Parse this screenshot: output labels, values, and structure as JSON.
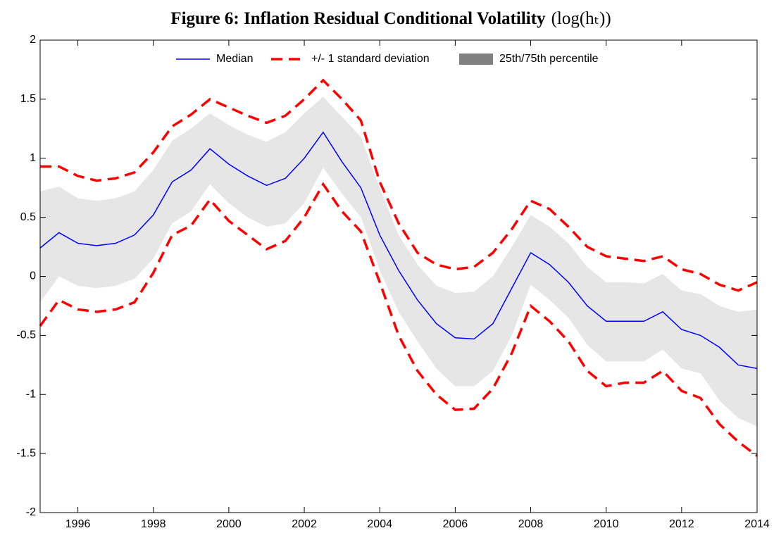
{
  "chart_data": {
    "type": "line",
    "title": "Figure 6: Inflation Residual Conditional Volatility",
    "title_formula": "(log(hₜ))",
    "x": [
      1995,
      1995.5,
      1996,
      1996.5,
      1997,
      1997.5,
      1998,
      1998.5,
      1999,
      1999.5,
      2000,
      2000.5,
      2001,
      2001.5,
      2002,
      2002.5,
      2003,
      2003.5,
      2004,
      2004.5,
      2005,
      2005.5,
      2006,
      2006.5,
      2007,
      2007.5,
      2008,
      2008.5,
      2009,
      2009.5,
      2010,
      2010.5,
      2011,
      2011.5,
      2012,
      2012.5,
      2013,
      2013.5,
      2014
    ],
    "series": [
      {
        "name": "Median",
        "color": "#0000ff",
        "style": "solid",
        "values": [
          0.24,
          0.37,
          0.28,
          0.26,
          0.28,
          0.35,
          0.52,
          0.8,
          0.9,
          1.08,
          0.95,
          0.85,
          0.77,
          0.83,
          1.0,
          1.22,
          0.97,
          0.75,
          0.35,
          0.05,
          -0.2,
          -0.4,
          -0.52,
          -0.53,
          -0.4,
          -0.1,
          0.2,
          0.1,
          -0.05,
          -0.25,
          -0.38,
          -0.38,
          -0.38,
          -0.3,
          -0.45,
          -0.5,
          -0.6,
          -0.75,
          -0.78
        ]
      },
      {
        "name": "+/- 1 standard deviation",
        "color": "#ff0000",
        "style": "dashed",
        "upper": [
          0.93,
          0.93,
          0.85,
          0.81,
          0.83,
          0.88,
          1.05,
          1.27,
          1.37,
          1.5,
          1.43,
          1.36,
          1.3,
          1.36,
          1.5,
          1.66,
          1.5,
          1.32,
          0.8,
          0.45,
          0.2,
          0.1,
          0.06,
          0.08,
          0.2,
          0.4,
          0.64,
          0.57,
          0.42,
          0.25,
          0.17,
          0.15,
          0.13,
          0.17,
          0.06,
          0.02,
          -0.07,
          -0.12,
          -0.05
        ],
        "lower": [
          -0.42,
          -0.2,
          -0.28,
          -0.3,
          -0.28,
          -0.22,
          0.03,
          0.35,
          0.43,
          0.65,
          0.47,
          0.35,
          0.23,
          0.3,
          0.5,
          0.78,
          0.55,
          0.38,
          -0.05,
          -0.5,
          -0.8,
          -1.0,
          -1.13,
          -1.12,
          -0.95,
          -0.65,
          -0.25,
          -0.38,
          -0.55,
          -0.8,
          -0.93,
          -0.9,
          -0.9,
          -0.8,
          -0.97,
          -1.03,
          -1.25,
          -1.4,
          -1.52
        ]
      },
      {
        "name": "25th/75th percentile",
        "color": "#e6e6e6",
        "legend_color": "#808080",
        "style": "band",
        "upper": [
          0.72,
          0.76,
          0.66,
          0.64,
          0.66,
          0.72,
          0.9,
          1.15,
          1.25,
          1.38,
          1.28,
          1.2,
          1.14,
          1.22,
          1.38,
          1.52,
          1.35,
          1.18,
          0.75,
          0.35,
          0.1,
          -0.08,
          -0.14,
          -0.13,
          0.0,
          0.25,
          0.52,
          0.42,
          0.28,
          0.08,
          -0.05,
          -0.05,
          -0.06,
          0.02,
          -0.12,
          -0.15,
          -0.25,
          -0.3,
          -0.28
        ],
        "lower": [
          -0.22,
          0.0,
          -0.08,
          -0.1,
          -0.08,
          -0.02,
          0.15,
          0.45,
          0.55,
          0.78,
          0.62,
          0.5,
          0.42,
          0.45,
          0.62,
          0.92,
          0.7,
          0.5,
          0.05,
          -0.3,
          -0.55,
          -0.78,
          -0.93,
          -0.93,
          -0.8,
          -0.5,
          -0.07,
          -0.2,
          -0.35,
          -0.58,
          -0.72,
          -0.72,
          -0.72,
          -0.62,
          -0.78,
          -0.82,
          -1.05,
          -1.2,
          -1.27
        ]
      }
    ],
    "xlim": [
      1995,
      2014
    ],
    "xticks": [
      1996,
      1998,
      2000,
      2002,
      2004,
      2006,
      2008,
      2010,
      2012,
      2014
    ],
    "ylim": [
      -2,
      2
    ],
    "yticks": [
      -2,
      -1.5,
      -1,
      -0.5,
      0,
      0.5,
      1,
      1.5,
      2
    ],
    "grid": false,
    "legend": "top"
  }
}
